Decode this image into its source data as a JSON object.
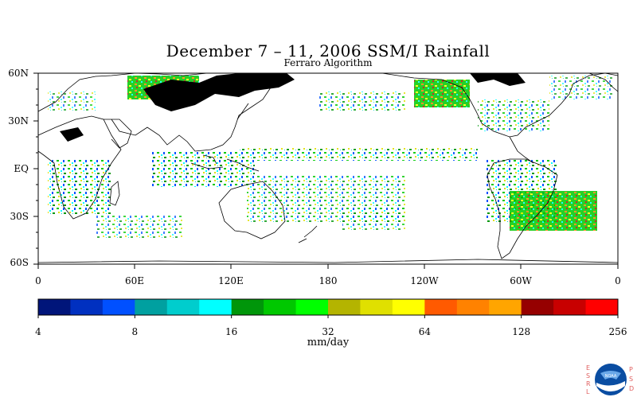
{
  "title": "December 7 – 11, 2006 SSM/I Rainfall",
  "subtitle": "Ferraro Algorithm",
  "map": {
    "lat_labels": [
      "60N",
      "30N",
      "EQ",
      "30S",
      "60S"
    ],
    "lon_labels": [
      "0",
      "60E",
      "120E",
      "180",
      "120W",
      "60W",
      "0"
    ]
  },
  "colorbar": {
    "units": "mm/day",
    "tick_labels": [
      "4",
      "8",
      "16",
      "32",
      "64",
      "128",
      "256"
    ],
    "colors": [
      "#00157a",
      "#0030c0",
      "#0050ff",
      "#00a0a0",
      "#00cdcd",
      "#00ffff",
      "#00960a",
      "#00c800",
      "#00ff00",
      "#b4b400",
      "#e0e000",
      "#ffff00",
      "#ff5a00",
      "#ff8200",
      "#ffa500",
      "#960000",
      "#c80000",
      "#ff0000"
    ]
  },
  "logo": {
    "left_letters": "ESRL",
    "right_letters": "PSD",
    "badge": "NOAA"
  }
}
